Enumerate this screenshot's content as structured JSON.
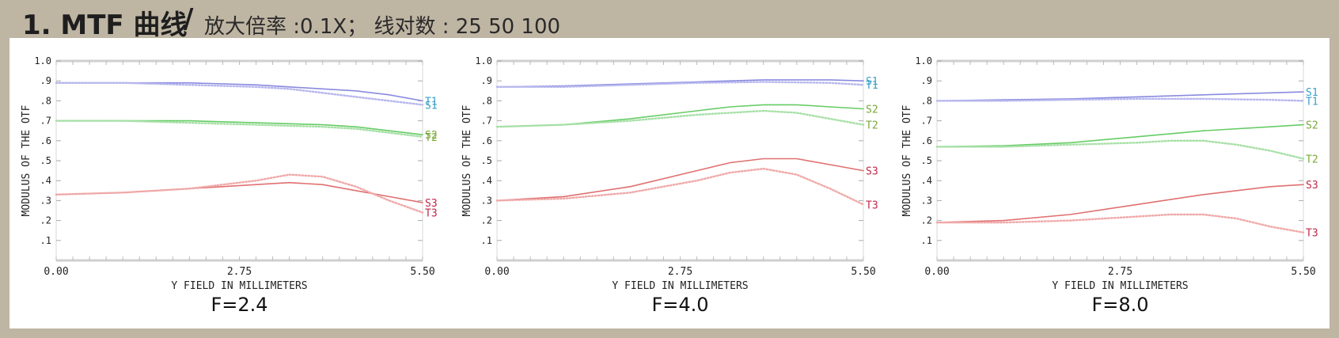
{
  "header": {
    "title": "1. MTF 曲线",
    "slash": "/",
    "subtitle": "放大倍率 :0.1X；  线对数 : 25 50 100"
  },
  "chart_data": [
    {
      "type": "line",
      "title": "F=2.4",
      "xlabel": "Y FIELD IN MILLIMETERS",
      "ylabel": "MODULUS OF THE OTF",
      "xlim": [
        0,
        5.5
      ],
      "ylim": [
        0,
        1.0
      ],
      "x_ticks": [
        "0.00",
        "2.75",
        "5.50"
      ],
      "y_ticks": [
        ".1",
        ".2",
        ".3",
        ".4",
        ".5",
        ".6",
        ".7",
        ".8",
        ".9",
        "1.0"
      ],
      "grid": false,
      "series": [
        {
          "name": "T1",
          "color": "#8a8ae0",
          "style": "solid",
          "x": [
            0,
            1,
            2,
            3,
            3.5,
            4,
            4.5,
            5,
            5.5
          ],
          "y": [
            0.89,
            0.89,
            0.89,
            0.88,
            0.87,
            0.86,
            0.85,
            0.83,
            0.8
          ]
        },
        {
          "name": "S1",
          "color": "#8a8ae0",
          "style": "dotted",
          "x": [
            0,
            1,
            2,
            3,
            3.5,
            4,
            4.5,
            5,
            5.5
          ],
          "y": [
            0.89,
            0.89,
            0.88,
            0.87,
            0.86,
            0.84,
            0.82,
            0.8,
            0.78
          ]
        },
        {
          "name": "S2",
          "color": "#66cc66",
          "style": "solid",
          "x": [
            0,
            1,
            2,
            3,
            4,
            4.5,
            5,
            5.5
          ],
          "y": [
            0.7,
            0.7,
            0.7,
            0.69,
            0.68,
            0.67,
            0.65,
            0.63
          ]
        },
        {
          "name": "T2",
          "color": "#66cc66",
          "style": "dotted",
          "x": [
            0,
            1,
            2,
            3,
            4,
            4.5,
            5,
            5.5
          ],
          "y": [
            0.7,
            0.7,
            0.69,
            0.68,
            0.67,
            0.66,
            0.64,
            0.62
          ]
        },
        {
          "name": "S3",
          "color": "#e07070",
          "style": "solid",
          "x": [
            0,
            1,
            2,
            3,
            3.5,
            4,
            4.5,
            5,
            5.5
          ],
          "y": [
            0.33,
            0.34,
            0.36,
            0.38,
            0.39,
            0.38,
            0.35,
            0.32,
            0.29
          ]
        },
        {
          "name": "T3",
          "color": "#e07070",
          "style": "dotted",
          "x": [
            0,
            1,
            2,
            3,
            3.5,
            4,
            4.5,
            5,
            5.5
          ],
          "y": [
            0.33,
            0.34,
            0.36,
            0.4,
            0.43,
            0.42,
            0.37,
            0.3,
            0.24
          ]
        }
      ]
    },
    {
      "type": "line",
      "title": "F=4.0",
      "xlabel": "Y FIELD IN MILLIMETERS",
      "ylabel": "MODULUS OF THE OTF",
      "xlim": [
        0,
        5.5
      ],
      "ylim": [
        0,
        1.0
      ],
      "x_ticks": [
        "0.00",
        "2.75",
        "5.50"
      ],
      "y_ticks": [
        ".1",
        ".2",
        ".3",
        ".4",
        ".5",
        ".6",
        ".7",
        ".8",
        ".9",
        "1.0"
      ],
      "grid": false,
      "series": [
        {
          "name": "S1",
          "color": "#8a8ae0",
          "style": "solid",
          "x": [
            0,
            1,
            2,
            3,
            4,
            5,
            5.5
          ],
          "y": [
            0.87,
            0.875,
            0.885,
            0.895,
            0.905,
            0.905,
            0.9
          ]
        },
        {
          "name": "T1",
          "color": "#8a8ae0",
          "style": "dotted",
          "x": [
            0,
            1,
            2,
            3,
            4,
            5,
            5.5
          ],
          "y": [
            0.87,
            0.87,
            0.88,
            0.89,
            0.895,
            0.89,
            0.88
          ]
        },
        {
          "name": "S2",
          "color": "#66cc66",
          "style": "solid",
          "x": [
            0,
            1,
            2,
            3,
            3.5,
            4,
            4.5,
            5,
            5.5
          ],
          "y": [
            0.67,
            0.68,
            0.71,
            0.75,
            0.77,
            0.78,
            0.78,
            0.77,
            0.76
          ]
        },
        {
          "name": "T2",
          "color": "#66cc66",
          "style": "dotted",
          "x": [
            0,
            1,
            2,
            3,
            3.5,
            4,
            4.5,
            5,
            5.5
          ],
          "y": [
            0.67,
            0.68,
            0.7,
            0.73,
            0.74,
            0.75,
            0.74,
            0.71,
            0.68
          ]
        },
        {
          "name": "S3",
          "color": "#e07070",
          "style": "solid",
          "x": [
            0,
            1,
            2,
            3,
            3.5,
            4,
            4.5,
            5,
            5.5
          ],
          "y": [
            0.3,
            0.32,
            0.37,
            0.45,
            0.49,
            0.51,
            0.51,
            0.48,
            0.45
          ]
        },
        {
          "name": "T3",
          "color": "#e07070",
          "style": "dotted",
          "x": [
            0,
            1,
            2,
            3,
            3.5,
            4,
            4.5,
            5,
            5.5
          ],
          "y": [
            0.3,
            0.31,
            0.34,
            0.4,
            0.44,
            0.46,
            0.43,
            0.36,
            0.28
          ]
        }
      ]
    },
    {
      "type": "line",
      "title": "F=8.0",
      "xlabel": "Y FIELD IN MILLIMETERS",
      "ylabel": "MODULUS OF THE OTF",
      "xlim": [
        0,
        5.5
      ],
      "ylim": [
        0,
        1.0
      ],
      "x_ticks": [
        "0.00",
        "2.75",
        "5.50"
      ],
      "y_ticks": [
        ".1",
        ".2",
        ".3",
        ".4",
        ".5",
        ".6",
        ".7",
        ".8",
        ".9",
        "1.0"
      ],
      "grid": false,
      "series": [
        {
          "name": "S1",
          "color": "#8a8ae0",
          "style": "solid",
          "x": [
            0,
            1,
            2,
            3,
            4,
            5,
            5.5
          ],
          "y": [
            0.8,
            0.805,
            0.81,
            0.82,
            0.83,
            0.84,
            0.845
          ]
        },
        {
          "name": "T1",
          "color": "#8a8ae0",
          "style": "dotted",
          "x": [
            0,
            1,
            2,
            3,
            4,
            5,
            5.5
          ],
          "y": [
            0.8,
            0.8,
            0.805,
            0.81,
            0.81,
            0.805,
            0.8
          ]
        },
        {
          "name": "S2",
          "color": "#66cc66",
          "style": "solid",
          "x": [
            0,
            1,
            2,
            3,
            4,
            5,
            5.5
          ],
          "y": [
            0.57,
            0.575,
            0.59,
            0.62,
            0.65,
            0.67,
            0.68
          ]
        },
        {
          "name": "T2",
          "color": "#66cc66",
          "style": "dotted",
          "x": [
            0,
            1,
            2,
            3,
            3.5,
            4,
            4.5,
            5,
            5.5
          ],
          "y": [
            0.57,
            0.57,
            0.58,
            0.59,
            0.6,
            0.6,
            0.58,
            0.55,
            0.51
          ]
        },
        {
          "name": "S3",
          "color": "#e07070",
          "style": "solid",
          "x": [
            0,
            1,
            2,
            3,
            4,
            5,
            5.5
          ],
          "y": [
            0.19,
            0.2,
            0.23,
            0.28,
            0.33,
            0.37,
            0.38
          ]
        },
        {
          "name": "T3",
          "color": "#e07070",
          "style": "dotted",
          "x": [
            0,
            1,
            2,
            3,
            3.5,
            4,
            4.5,
            5,
            5.5
          ],
          "y": [
            0.19,
            0.19,
            0.2,
            0.22,
            0.23,
            0.23,
            0.21,
            0.17,
            0.14
          ]
        }
      ]
    }
  ]
}
